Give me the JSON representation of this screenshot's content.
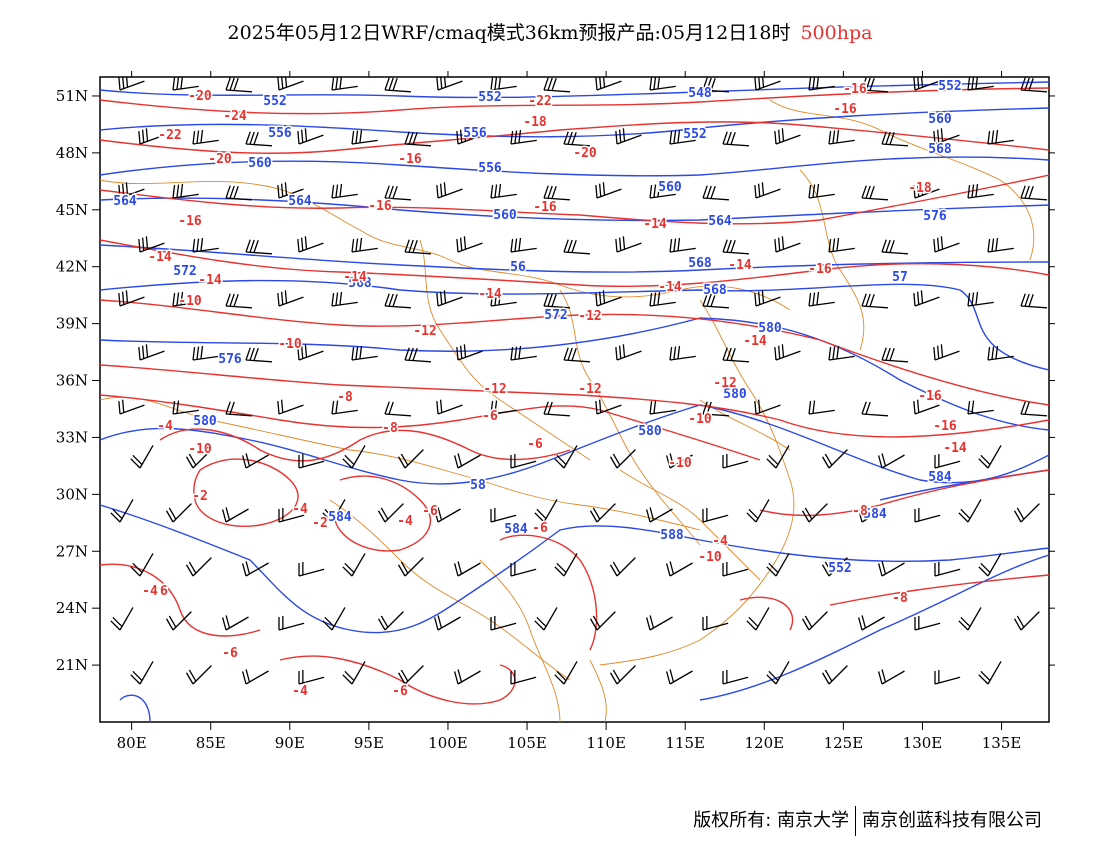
{
  "title": {
    "main": "2025年05月12日WRF/cmaq模式36km预报产品:05月12日18时",
    "level": "500hpa"
  },
  "colors": {
    "geopotential": "#2a49e8",
    "temperature": "#e8322f",
    "boundaries": "#e08a2a",
    "wind": "#000000",
    "level_text": "#e8322f"
  },
  "map": {
    "lon_range": [
      78,
      138
    ],
    "lat_range": [
      18,
      52
    ],
    "lon_ticks": [
      "80E",
      "85E",
      "90E",
      "95E",
      "100E",
      "105E",
      "110E",
      "115E",
      "120E",
      "125E",
      "130E",
      "135E"
    ],
    "lat_ticks": [
      "51N",
      "48N",
      "45N",
      "42N",
      "39N",
      "36N",
      "33N",
      "30N",
      "27N",
      "24N",
      "21N"
    ],
    "height_labels": [
      "552",
      "552",
      "548",
      "552",
      "556",
      "556",
      "552",
      "560",
      "560",
      "556",
      "560",
      "568",
      "564",
      "564",
      "560",
      "564",
      "576",
      "572",
      "568",
      "56",
      "568",
      "568",
      "57",
      "572",
      "580",
      "576",
      "580",
      "580",
      "580",
      "58",
      "584",
      "584",
      "584",
      "584",
      "588",
      "552"
    ],
    "temperature_labels": [
      "-20",
      "-22",
      "-24",
      "-22",
      "-20",
      "-18",
      "-20",
      "-16",
      "-16",
      "-16",
      "-16",
      "-18",
      "-16",
      "-16",
      "-14",
      "-14",
      "-14",
      "-14",
      "-14",
      "-14",
      "-14",
      "-16",
      "-16",
      "-10",
      "-12",
      "-12",
      "-12",
      "-14",
      "-12",
      "-10",
      "-8",
      "-10",
      "-16",
      "-14",
      "-12",
      "-6",
      "-4",
      "-8",
      "-6",
      "-10",
      "-8",
      "-10",
      "-2",
      "-4",
      "-2",
      "-4",
      "-6",
      "-4",
      "-4",
      "-6",
      "-6",
      "-8",
      "-10",
      "-6",
      "-6",
      "-4",
      "-4"
    ]
  },
  "footer": {
    "left": "版权所有: 南京大学",
    "right": "南京创蓝科技有限公司"
  }
}
